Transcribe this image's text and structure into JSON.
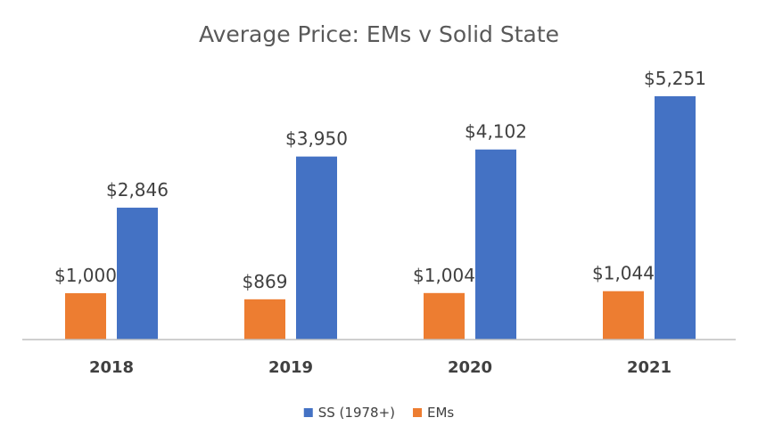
{
  "chart_data": {
    "type": "bar",
    "title": "Average Price: EMs v Solid State",
    "categories": [
      "2018",
      "2019",
      "2020",
      "2021"
    ],
    "series": [
      {
        "name": "EMs",
        "color": "#ED7D31",
        "values": [
          1000,
          869,
          1004,
          1044
        ],
        "labels": [
          "$1,000",
          "$869",
          "$1,004",
          "$1,044"
        ]
      },
      {
        "name": "SS (1978+)",
        "color": "#4472C4",
        "values": [
          2846,
          3950,
          4102,
          5251
        ],
        "labels": [
          "$2,846",
          "$3,950",
          "$4,102",
          "$5,251"
        ]
      }
    ],
    "legend": {
      "position": "bottom",
      "order": [
        "SS (1978+)",
        "EMs"
      ]
    },
    "xlabel": "",
    "ylabel": "",
    "ylim": [
      0,
      5500
    ],
    "grid": false
  }
}
